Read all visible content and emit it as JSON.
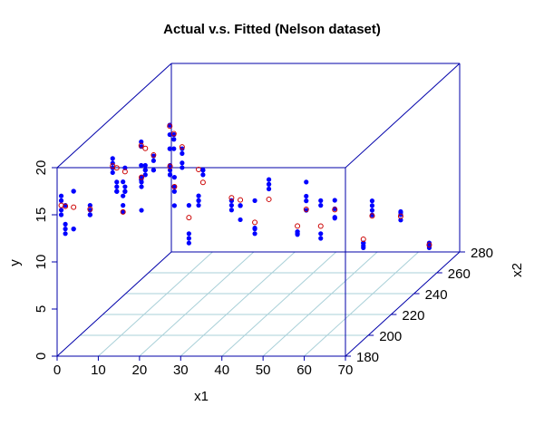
{
  "chart_data": {
    "type": "scatter3d",
    "title": "Actual v.s. Fitted (Nelson dataset)",
    "xlabel": "x1",
    "ylabel": "x2",
    "zlabel": "y",
    "xlim": [
      0,
      70
    ],
    "ylim": [
      180,
      280
    ],
    "zlim": [
      0,
      20
    ],
    "x_ticks": [
      "0",
      "10",
      "20",
      "30",
      "40",
      "50",
      "60",
      "70"
    ],
    "y_ticks": [
      "180",
      "200",
      "220",
      "240",
      "260",
      "280"
    ],
    "z_ticks": [
      "0",
      "5",
      "10",
      "15",
      "20"
    ],
    "grid": "floor",
    "colors": {
      "actual": "#0000ff",
      "fitted": "#cc0000",
      "box": "#0000aa",
      "grid": "#a9d0d8"
    },
    "series": [
      {
        "name": "Actual",
        "marker": "filled-circle"
      },
      {
        "name": "Fitted",
        "marker": "open-circle"
      }
    ],
    "groups": [
      {
        "x1": 1,
        "x2": 180,
        "y": [
          15.0,
          17.0,
          15.5,
          16.5
        ],
        "fit": 16.0
      },
      {
        "x1": 1,
        "x2": 225,
        "y": [
          15.5,
          15.0,
          16.0,
          14.5
        ],
        "fit": 15.2
      },
      {
        "x1": 1,
        "x2": 250,
        "y": [
          15.0,
          14.5,
          12.5,
          11.0
        ],
        "fit": 14.6
      },
      {
        "x1": 1,
        "x2": 275,
        "y": [
          14.0,
          13.0,
          14.0,
          11.5
        ],
        "fit": 13.9
      },
      {
        "x1": 2,
        "x2": 180,
        "y": [
          14.0,
          16.0,
          13.0,
          13.5
        ],
        "fit": 15.9
      },
      {
        "x1": 2,
        "x2": 225,
        "y": [
          13.0,
          13.5,
          12.5,
          12.5
        ],
        "fit": 15.0
      },
      {
        "x1": 2,
        "x2": 250,
        "y": [
          12.5,
          12.0,
          11.5,
          12.0
        ],
        "fit": 14.3
      },
      {
        "x1": 2,
        "x2": 275,
        "y": [
          13.0,
          11.5,
          13.0,
          12.5
        ],
        "fit": 13.1
      },
      {
        "x1": 4,
        "x2": 180,
        "y": [
          13.5,
          17.5,
          17.5,
          13.5
        ],
        "fit": 15.8
      },
      {
        "x1": 4,
        "x2": 225,
        "y": [
          12.5,
          12.5,
          15.0,
          13.0
        ],
        "fit": 14.6
      },
      {
        "x1": 4,
        "x2": 250,
        "y": [
          12.0,
          13.0,
          12.0,
          13.5
        ],
        "fit": 13.6
      },
      {
        "x1": 4,
        "x2": 275,
        "y": [
          10.0,
          11.5,
          11.0,
          9.5
        ],
        "fit": 11.7
      },
      {
        "x1": 8,
        "x2": 180,
        "y": [
          15.0,
          15.0,
          15.5,
          16.0
        ],
        "fit": 15.6
      },
      {
        "x1": 8,
        "x2": 225,
        "y": [
          13.0,
          10.5,
          13.5,
          14.0
        ],
        "fit": 14.0
      },
      {
        "x1": 8,
        "x2": 250,
        "y": [
          12.5,
          12.0,
          11.5,
          11.5
        ],
        "fit": 12.4
      },
      {
        "x1": 8,
        "x2": 275,
        "y": [
          6.5,
          5.5,
          6.0,
          6.0
        ],
        "fit": 9.3
      },
      {
        "x1": 16,
        "x2": 180,
        "y": [
          18.5,
          17.0,
          15.3,
          16.0
        ],
        "fit": 15.3
      },
      {
        "x1": 16,
        "x2": 225,
        "y": [
          13.0,
          14.0,
          12.5,
          11.0
        ],
        "fit": 13.0
      },
      {
        "x1": 16,
        "x2": 250,
        "y": [
          12.0,
          12.0,
          11.5,
          12.0
        ],
        "fit": 10.7
      },
      {
        "x1": 16,
        "x2": 275,
        "y": [
          6.0,
          6.0,
          5.0,
          5.5
        ],
        "fit": 6.3
      },
      {
        "x1": 32,
        "x2": 180,
        "y": [
          12.5,
          13.0,
          16.0,
          12.0
        ],
        "fit": 14.7
      },
      {
        "x1": 32,
        "x2": 225,
        "y": [
          11.0,
          9.5,
          11.0,
          11.0
        ],
        "fit": 11.6
      },
      {
        "x1": 32,
        "x2": 250,
        "y": [
          11.0,
          10.0,
          10.5,
          10.5
        ],
        "fit": 8.9
      },
      {
        "x1": 32,
        "x2": 275,
        "y": [
          2.7,
          2.7,
          2.5,
          2.4
        ],
        "fit": 3.3
      },
      {
        "x1": 48,
        "x2": 180,
        "y": [
          13.0,
          13.5,
          16.5,
          13.6
        ],
        "fit": 14.2
      },
      {
        "x1": 48,
        "x2": 225,
        "y": [
          11.5,
          10.5,
          13.5,
          12.0
        ],
        "fit": 10.6
      },
      {
        "x1": 48,
        "x2": 250,
        "y": [
          7.0,
          6.9,
          8.8,
          7.9
        ],
        "fit": 7.8
      },
      {
        "x1": 48,
        "x2": 275,
        "y": [
          1.2,
          1.5,
          1.0,
          1.5
        ],
        "fit": 1.9
      },
      {
        "x1": 64,
        "x2": 180,
        "y": [
          13.0,
          12.5,
          16.5,
          16.0
        ],
        "fit": 13.8
      },
      {
        "x1": 64,
        "x2": 225,
        "y": [
          11.0,
          11.5,
          10.5,
          10.0
        ],
        "fit": 9.9
      },
      {
        "x1": 64,
        "x2": 250,
        "y": [
          7.27,
          7.5,
          6.7,
          7.6
        ],
        "fit": 7.1
      },
      {
        "x1": 64,
        "x2": 275,
        "y": [
          1.5,
          1.0,
          1.2,
          1.2
        ],
        "fit": 1.3
      }
    ]
  }
}
